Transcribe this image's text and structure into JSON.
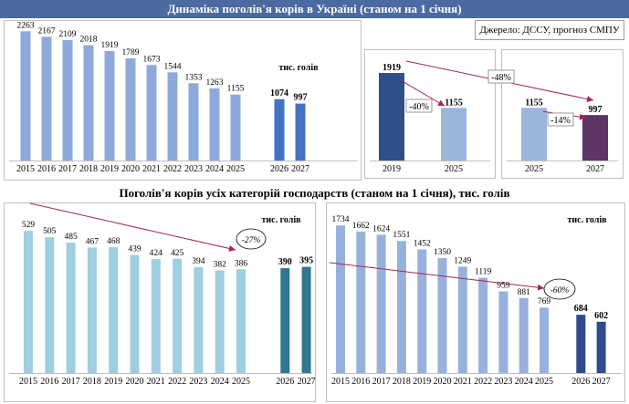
{
  "header": {
    "title": "Динаміка поголів'я корів в Україні (станом на 1 січня)"
  },
  "source_note": "Джерело: ДССУ, прогноз СМПУ",
  "subtitle": "Поголів'я корів усіх категорій господарств (станом на 1 січня), тис. голів",
  "colors": {
    "header_bg": "#4a6aa1",
    "top_hist": "#8eaadb",
    "top_fc": "#4472c4",
    "bl_hist": "#9dcfe0",
    "bl_fc": "#31778f",
    "br_hist": "#97b1dc",
    "br_fc": "#2f4b8d",
    "comp_2019": "#2e4f87",
    "comp_2025": "#9cb5dd",
    "comp_2027": "#5c3566",
    "arrow": "#a4245a"
  },
  "chart_data": [
    {
      "id": "top-main",
      "type": "bar",
      "title": "Динаміка поголів'я корів в Україні (станом на 1 січня)",
      "unit_label": "тис. голів",
      "categories": [
        "2015",
        "2016",
        "2017",
        "2018",
        "2019",
        "2020",
        "2021",
        "2022",
        "2023",
        "2024",
        "2025",
        "2026",
        "2027"
      ],
      "values": [
        2263,
        2167,
        2109,
        2018,
        1919,
        1789,
        1673,
        1544,
        1353,
        1263,
        1155,
        1074,
        997
      ],
      "forecast": [
        false,
        false,
        false,
        false,
        false,
        false,
        false,
        false,
        false,
        false,
        false,
        true,
        true
      ],
      "ylim": [
        0,
        2300
      ]
    },
    {
      "id": "comp-1",
      "type": "bar",
      "categories": [
        "2019",
        "2025"
      ],
      "values": [
        1919,
        1155
      ],
      "change_label": "-40%",
      "ylim": [
        0,
        2000
      ]
    },
    {
      "id": "comp-2",
      "type": "bar",
      "categories": [
        "2025",
        "2027"
      ],
      "values": [
        1155,
        997
      ],
      "change_label": "-14%",
      "ylim": [
        0,
        2000
      ]
    },
    {
      "id": "comp-overall",
      "change_label": "-48%"
    },
    {
      "id": "bottom-left",
      "type": "bar",
      "unit_label": "тис. голів",
      "categories": [
        "2015",
        "2016",
        "2017",
        "2018",
        "2019",
        "2020",
        "2021",
        "2022",
        "2023",
        "2024",
        "2025",
        "2026",
        "2027"
      ],
      "values": [
        529,
        505,
        485,
        467,
        468,
        439,
        424,
        425,
        394,
        382,
        386,
        390,
        395
      ],
      "forecast": [
        false,
        false,
        false,
        false,
        false,
        false,
        false,
        false,
        false,
        false,
        false,
        true,
        true
      ],
      "change_label": "-27%",
      "ylim": [
        0,
        560
      ]
    },
    {
      "id": "bottom-right",
      "type": "bar",
      "unit_label": "тис. голів",
      "categories": [
        "2015",
        "2016",
        "2017",
        "2018",
        "2019",
        "2020",
        "2021",
        "2022",
        "2023",
        "2024",
        "2025",
        "2026",
        "2027"
      ],
      "values": [
        1734,
        1662,
        1624,
        1551,
        1452,
        1350,
        1249,
        1119,
        959,
        881,
        769,
        684,
        602
      ],
      "forecast": [
        false,
        false,
        false,
        false,
        false,
        false,
        false,
        false,
        false,
        false,
        false,
        true,
        true
      ],
      "change_label": "-60%",
      "ylim": [
        0,
        1800
      ]
    }
  ]
}
